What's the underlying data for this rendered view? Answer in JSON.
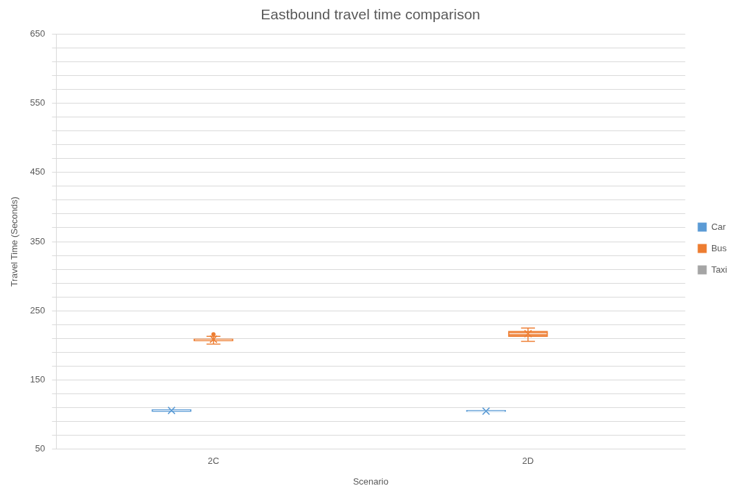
{
  "chart_data": {
    "type": "box",
    "title": "Eastbound travel time comparison",
    "xlabel": "Scenario",
    "ylabel": "Travel Time (Seconds)",
    "categories": [
      "2C",
      "2D"
    ],
    "ylim": [
      50,
      650
    ],
    "yticks": [
      50,
      {
        "value": 70,
        "label": null
      },
      {
        "value": 90,
        "label": null
      },
      {
        "value": 110,
        "label": null
      },
      {
        "value": 130,
        "label": null
      },
      150,
      {
        "value": 170,
        "label": null
      },
      {
        "value": 190,
        "label": null
      },
      {
        "value": 210,
        "label": null
      },
      {
        "value": 230,
        "label": null
      },
      250,
      {
        "value": 270,
        "label": null
      },
      {
        "value": 290,
        "label": null
      },
      {
        "value": 310,
        "label": null
      },
      {
        "value": 330,
        "label": null
      },
      350,
      {
        "value": 370,
        "label": null
      },
      {
        "value": 390,
        "label": null
      },
      {
        "value": 410,
        "label": null
      },
      {
        "value": 430,
        "label": null
      },
      450,
      {
        "value": 470,
        "label": null
      },
      {
        "value": 490,
        "label": null
      },
      {
        "value": 510,
        "label": null
      },
      {
        "value": 530,
        "label": null
      },
      550,
      {
        "value": 570,
        "label": null
      },
      {
        "value": 590,
        "label": null
      },
      {
        "value": 610,
        "label": null
      },
      {
        "value": 630,
        "label": null
      },
      650
    ],
    "grid": "y",
    "legend": "right",
    "series": [
      {
        "name": "Car",
        "color": "#5b9bd5",
        "boxes": [
          {
            "low": 105,
            "q1": 105,
            "median": 106,
            "q3": 107,
            "high": 107,
            "mean": 106
          },
          {
            "low": 105,
            "q1": 105,
            "median": 105,
            "q3": 106,
            "high": 106,
            "mean": 105
          }
        ]
      },
      {
        "name": "Bus",
        "color": "#ed7d31",
        "boxes": [
          {
            "low": 202,
            "q1": 207,
            "median": 208,
            "q3": 209,
            "high": 213,
            "mean": 209,
            "outliers": [
              216
            ]
          },
          {
            "low": 206,
            "q1": 213,
            "median": 217,
            "q3": 220,
            "high": 225,
            "mean": 217
          }
        ]
      },
      {
        "name": "Taxi",
        "color": "#a5a5a5",
        "boxes": [
          null,
          null
        ]
      }
    ]
  }
}
